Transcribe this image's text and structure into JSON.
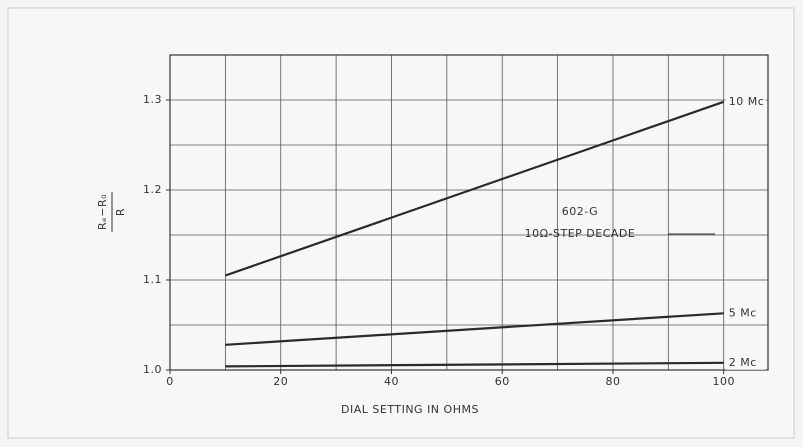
{
  "chart_data": {
    "type": "line",
    "x_label": "DIAL SETTING IN OHMS",
    "y_label_numerator": "Rₑ−R₀",
    "y_label_denominator": "R",
    "annotation_title": "602-G",
    "annotation_subtitle": "10Ω-STEP DECADE",
    "xlim": [
      0,
      108
    ],
    "ylim": [
      1.0,
      1.35
    ],
    "xticks": [
      0,
      20,
      40,
      60,
      80,
      100
    ],
    "yticks": [
      {
        "value": 1.0,
        "label": "1.0"
      },
      1.1,
      1.2,
      1.3
    ],
    "xgrid": [
      10,
      20,
      30,
      40,
      50,
      60,
      70,
      80,
      90,
      100
    ],
    "ygrid": [
      1.05,
      1.1,
      1.15,
      1.2,
      1.25,
      1.3
    ],
    "grid": true,
    "series": [
      {
        "name": "10 Mc",
        "color": "#2a2a2a",
        "x": [
          10,
          100
        ],
        "values": [
          1.105,
          1.298
        ]
      },
      {
        "name": "5 Mc",
        "color": "#2a2a2a",
        "x": [
          10,
          100
        ],
        "values": [
          1.028,
          1.063
        ]
      },
      {
        "name": "2 Mc",
        "color": "#2a2a2a",
        "x": [
          10,
          100
        ],
        "values": [
          1.004,
          1.008
        ]
      }
    ]
  }
}
